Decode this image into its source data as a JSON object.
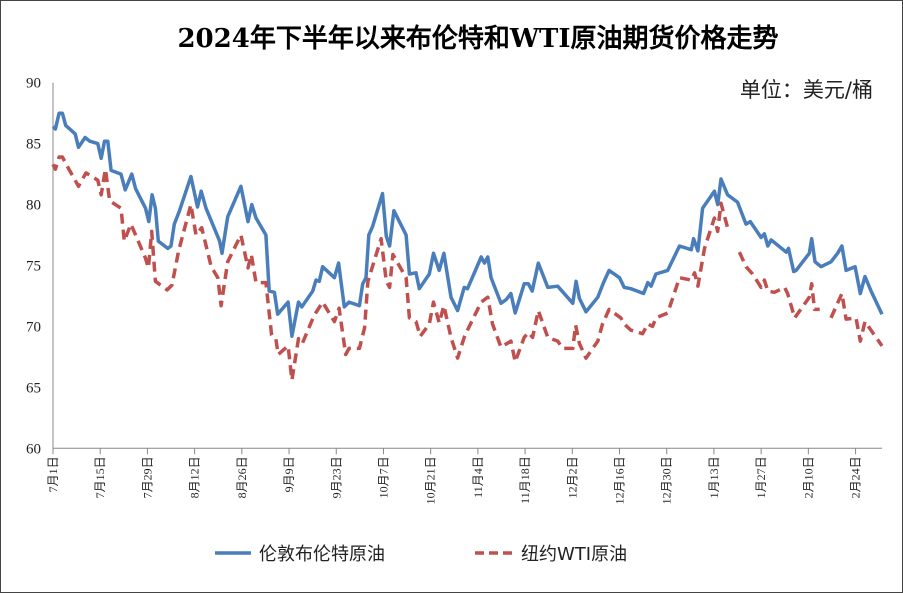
{
  "chart_data": {
    "type": "line",
    "title": "2024年下半年以来布伦特和WTI原油期货价格走势",
    "unit_label": "单位：美元/桶",
    "xlabel": "",
    "ylabel": "",
    "x_unit": "trading-day index from 7月1日",
    "xlim": [
      0,
      175.6
    ],
    "ylim": [
      60,
      90
    ],
    "yticks": [
      60,
      65,
      70,
      75,
      80,
      85,
      90
    ],
    "xticks": [
      {
        "x": 0,
        "label": "7月1日"
      },
      {
        "x": 10,
        "label": "7月15日"
      },
      {
        "x": 20,
        "label": "7月29日"
      },
      {
        "x": 30,
        "label": "8月12日"
      },
      {
        "x": 40,
        "label": "8月26日"
      },
      {
        "x": 50,
        "label": "9月9日"
      },
      {
        "x": 60,
        "label": "9月23日"
      },
      {
        "x": 70,
        "label": "10月7日"
      },
      {
        "x": 80,
        "label": "10月21日"
      },
      {
        "x": 90,
        "label": "11月4日"
      },
      {
        "x": 100,
        "label": "11月18日"
      },
      {
        "x": 110,
        "label": "12月2日"
      },
      {
        "x": 120,
        "label": "12月16日"
      },
      {
        "x": 130,
        "label": "12月30日"
      },
      {
        "x": 140,
        "label": "1月13日"
      },
      {
        "x": 150,
        "label": "1月27日"
      },
      {
        "x": 160,
        "label": "2月10日"
      },
      {
        "x": 170,
        "label": "2月24日"
      }
    ],
    "grid": false,
    "legend_position": "bottom",
    "series": [
      {
        "name": "伦敦布伦特原油",
        "color": "#4a7ebb",
        "style": "solid",
        "points": [
          [
            0,
            86.4
          ],
          [
            0.5,
            86.2
          ],
          [
            1.3,
            87.5
          ],
          [
            2,
            87.5
          ],
          [
            2.7,
            86.5
          ],
          [
            4.7,
            85.8
          ],
          [
            5.4,
            84.7
          ],
          [
            6.8,
            85.5
          ],
          [
            7.8,
            85.2
          ],
          [
            9.5,
            85.0
          ],
          [
            10.2,
            83.8
          ],
          [
            10.9,
            85.2
          ],
          [
            11.6,
            85.2
          ],
          [
            12.3,
            82.8
          ],
          [
            14.4,
            82.5
          ],
          [
            15.3,
            81.2
          ],
          [
            16.7,
            82.5
          ],
          [
            17.5,
            81.3
          ],
          [
            19.6,
            79.7
          ],
          [
            20.3,
            78.6
          ],
          [
            21,
            80.8
          ],
          [
            21.7,
            79.7
          ],
          [
            22.3,
            77.0
          ],
          [
            24.3,
            76.4
          ],
          [
            25,
            76.6
          ],
          [
            25.7,
            78.4
          ],
          [
            26.8,
            79.5
          ],
          [
            29.2,
            82.3
          ],
          [
            30.6,
            79.8
          ],
          [
            31.4,
            81.1
          ],
          [
            32.4,
            79.7
          ],
          [
            35.3,
            77
          ],
          [
            35.8,
            76
          ],
          [
            37,
            79
          ],
          [
            39.8,
            81.5
          ],
          [
            41.3,
            78.6
          ],
          [
            42.1,
            80
          ],
          [
            43,
            78.9
          ],
          [
            45.1,
            77.5
          ],
          [
            45.8,
            72.9
          ],
          [
            46.9,
            72.8
          ],
          [
            47.6,
            71
          ],
          [
            49.8,
            72
          ],
          [
            50.6,
            69.2
          ],
          [
            52,
            72
          ],
          [
            52.7,
            71.6
          ],
          [
            55,
            72.9
          ],
          [
            55.7,
            73.8
          ],
          [
            56.4,
            73.7
          ],
          [
            57.1,
            74.9
          ],
          [
            59.6,
            74
          ],
          [
            60.5,
            75.2
          ],
          [
            61.7,
            71.6
          ],
          [
            62.7,
            72
          ],
          [
            64.9,
            71.7
          ],
          [
            65.6,
            73.5
          ],
          [
            66.3,
            74
          ],
          [
            66.9,
            77.5
          ],
          [
            67.7,
            78.2
          ],
          [
            69.8,
            80.9
          ],
          [
            70.6,
            77.4
          ],
          [
            71.3,
            76.6
          ],
          [
            72.2,
            79.5
          ],
          [
            74.8,
            77.5
          ],
          [
            75.5,
            74.3
          ],
          [
            76.9,
            74.4
          ],
          [
            77.6,
            73.1
          ],
          [
            79.7,
            74.3
          ],
          [
            80.6,
            76
          ],
          [
            81.8,
            74.6
          ],
          [
            82.8,
            76
          ],
          [
            84.3,
            72.4
          ],
          [
            85.7,
            71.3
          ],
          [
            87.1,
            73.2
          ],
          [
            87.8,
            73.1
          ],
          [
            90.7,
            75.7
          ],
          [
            91.4,
            75.2
          ],
          [
            92.1,
            75.7
          ],
          [
            92.8,
            74
          ],
          [
            94.9,
            71.9
          ],
          [
            96,
            72.2
          ],
          [
            97,
            72.7
          ],
          [
            97.9,
            71.1
          ],
          [
            99.8,
            73.5
          ],
          [
            100.7,
            73.5
          ],
          [
            101.5,
            72.9
          ],
          [
            102.8,
            75.2
          ],
          [
            104.8,
            73.2
          ],
          [
            106.9,
            73.3
          ],
          [
            110.1,
            71.9
          ],
          [
            110.8,
            73.7
          ],
          [
            111.5,
            72.3
          ],
          [
            112.9,
            71.2
          ],
          [
            115.4,
            72.4
          ],
          [
            116.6,
            73.6
          ],
          [
            117.8,
            74.6
          ],
          [
            120,
            74
          ],
          [
            121,
            73.2
          ],
          [
            122.4,
            73.1
          ],
          [
            125.1,
            72.7
          ],
          [
            126,
            73.6
          ],
          [
            126.7,
            73.3
          ],
          [
            127.7,
            74.3
          ],
          [
            130.2,
            74.6
          ],
          [
            132.7,
            76.6
          ],
          [
            135.2,
            76.3
          ],
          [
            135.7,
            77.2
          ],
          [
            136.6,
            76.2
          ],
          [
            137.6,
            79.7
          ],
          [
            140.1,
            81.1
          ],
          [
            140.8,
            80
          ],
          [
            141.5,
            82.1
          ],
          [
            142.9,
            80.8
          ],
          [
            145,
            80.2
          ],
          [
            146.8,
            78.4
          ],
          [
            147.7,
            78.6
          ],
          [
            150,
            77.3
          ],
          [
            150.7,
            77.6
          ],
          [
            151.4,
            76.6
          ],
          [
            152.1,
            77.1
          ],
          [
            155.3,
            76.1
          ],
          [
            155.8,
            76.4
          ],
          [
            156.9,
            74.5
          ],
          [
            157.4,
            74.6
          ],
          [
            160.2,
            76
          ],
          [
            160.7,
            77.2
          ],
          [
            161.4,
            75.3
          ],
          [
            162.7,
            74.9
          ],
          [
            164.8,
            75.3
          ],
          [
            166.2,
            76
          ],
          [
            167.1,
            76.6
          ],
          [
            168,
            74.6
          ],
          [
            169.9,
            74.9
          ],
          [
            171,
            72.7
          ],
          [
            172,
            74.1
          ],
          [
            173.3,
            72.9
          ],
          [
            175.6,
            71
          ]
        ]
      },
      {
        "name": "纽约WTI原油",
        "color": "#c0504d",
        "style": "dashed",
        "points": [
          [
            0,
            83.3
          ],
          [
            0.5,
            82.9
          ],
          [
            1.3,
            83.9
          ],
          [
            2,
            83.9
          ],
          [
            3.1,
            83.1
          ],
          [
            5.4,
            81.5
          ],
          [
            7,
            82.6
          ],
          [
            9.5,
            82
          ],
          [
            10.2,
            80.8
          ],
          [
            11.1,
            82.9
          ],
          [
            12,
            80.3
          ],
          [
            14.4,
            79.7
          ],
          [
            15.1,
            77
          ],
          [
            16.5,
            78.4
          ],
          [
            19.6,
            75.6
          ],
          [
            20.2,
            74.8
          ],
          [
            20.9,
            77.8
          ],
          [
            21.7,
            73.7
          ],
          [
            24.2,
            73
          ],
          [
            25.2,
            73.4
          ],
          [
            26.6,
            76.2
          ],
          [
            29.2,
            80
          ],
          [
            30.3,
            77.5
          ],
          [
            31.5,
            78.1
          ],
          [
            33.5,
            74.9
          ],
          [
            34.9,
            74
          ],
          [
            35.6,
            71.7
          ],
          [
            37,
            75.3
          ],
          [
            39.8,
            77.5
          ],
          [
            41.3,
            74.8
          ],
          [
            42,
            75.9
          ],
          [
            43,
            73.6
          ],
          [
            45.1,
            73.6
          ],
          [
            46.3,
            69.3
          ],
          [
            47.2,
            69
          ],
          [
            47.7,
            67.7
          ],
          [
            49.8,
            68.4
          ],
          [
            50.6,
            65.6
          ],
          [
            52,
            69
          ],
          [
            52.8,
            68.6
          ],
          [
            55.3,
            70.9
          ],
          [
            57.1,
            72
          ],
          [
            59.6,
            70.4
          ],
          [
            60.6,
            71.5
          ],
          [
            62,
            67.7
          ],
          [
            62.7,
            68.2
          ],
          [
            64.9,
            68.2
          ],
          [
            66,
            69.9
          ],
          [
            66.7,
            73.7
          ],
          [
            69.5,
            77.2
          ],
          [
            70.6,
            73.7
          ],
          [
            71.3,
            73.2
          ],
          [
            72,
            75.9
          ],
          [
            74.8,
            74
          ],
          [
            75.5,
            70.7
          ],
          [
            76.9,
            70.4
          ],
          [
            77.8,
            69.2
          ],
          [
            79.7,
            70.2
          ],
          [
            80.6,
            72
          ],
          [
            81.8,
            70.3
          ],
          [
            82.8,
            71.7
          ],
          [
            84.3,
            69.1
          ],
          [
            85.7,
            67.4
          ],
          [
            87.1,
            69.1
          ],
          [
            87.8,
            69.7
          ],
          [
            90.7,
            72
          ],
          [
            92.1,
            72.4
          ],
          [
            93.1,
            70.2
          ],
          [
            94.9,
            68.3
          ],
          [
            97,
            68.8
          ],
          [
            97.9,
            67.1
          ],
          [
            99.8,
            69.1
          ],
          [
            100.7,
            69.5
          ],
          [
            101.6,
            69.1
          ],
          [
            102.8,
            71.3
          ],
          [
            104.8,
            69.1
          ],
          [
            106.9,
            68.8
          ],
          [
            108,
            68.2
          ],
          [
            110.1,
            68.2
          ],
          [
            110.7,
            70.1
          ],
          [
            111.5,
            68.6
          ],
          [
            112.9,
            67.4
          ],
          [
            115.4,
            68.8
          ],
          [
            116.4,
            70.2
          ],
          [
            117.8,
            71.4
          ],
          [
            120.3,
            70.7
          ],
          [
            121,
            70.2
          ],
          [
            122.4,
            69.7
          ],
          [
            124.9,
            69.4
          ],
          [
            126,
            70.2
          ],
          [
            127,
            70
          ],
          [
            127.7,
            70.7
          ],
          [
            130.2,
            71.1
          ],
          [
            132.7,
            74
          ],
          [
            135.2,
            73.8
          ],
          [
            135.9,
            74.4
          ],
          [
            136.6,
            73.3
          ],
          [
            138,
            76.4
          ],
          [
            140.1,
            78.9
          ],
          [
            140.8,
            77.8
          ],
          [
            141.5,
            80.1
          ],
          [
            142.9,
            78.1
          ],
          null,
          [
            145.4,
            76.1
          ],
          [
            146.8,
            74.9
          ],
          [
            148.2,
            74.3
          ],
          [
            150,
            73.2
          ],
          [
            150.7,
            73.8
          ],
          [
            151.4,
            72.9
          ],
          [
            152.8,
            72.8
          ],
          [
            155,
            73.2
          ],
          [
            155.6,
            72.7
          ],
          [
            157.1,
            70.7
          ],
          [
            160.2,
            72.4
          ],
          [
            160.7,
            73.5
          ],
          [
            161.3,
            71.4
          ],
          [
            162.4,
            71.4
          ],
          null,
          [
            164.8,
            70.7
          ],
          [
            167.1,
            72.7
          ],
          [
            168,
            70.6
          ],
          [
            170.1,
            70.7
          ],
          [
            171,
            68.8
          ],
          [
            172,
            70.4
          ],
          [
            175.6,
            68.4
          ]
        ]
      }
    ]
  }
}
